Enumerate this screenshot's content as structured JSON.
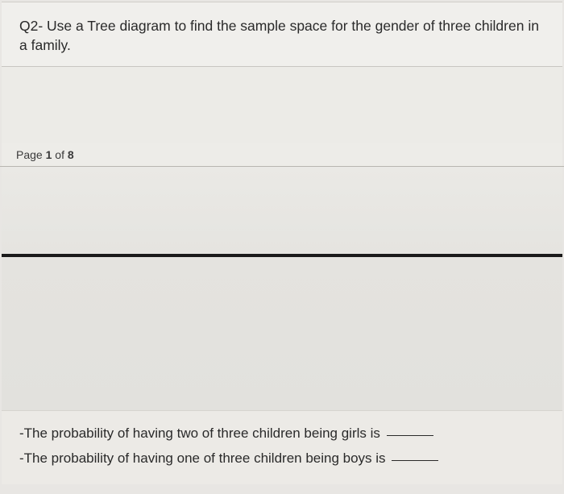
{
  "question": {
    "text": "Q2- Use a Tree diagram to find the sample space for the gender of three children in a family."
  },
  "pageIndicator": {
    "prefix": "Page ",
    "current": "1",
    "middle": " of ",
    "total": "8"
  },
  "statements": {
    "line1": "-The probability of having two of three children being girls is ",
    "line2": "-The probability of having one of three children being boys is "
  },
  "colors": {
    "background": "#e8e6e3",
    "pageBg": "#f0efec",
    "text": "#2a2a2a",
    "divider": "#1a1a1a",
    "thinLine": "#b8b6b0"
  },
  "typography": {
    "questionFontSize": 17.5,
    "statementFontSize": 17,
    "pageIndicatorFontSize": 14
  }
}
